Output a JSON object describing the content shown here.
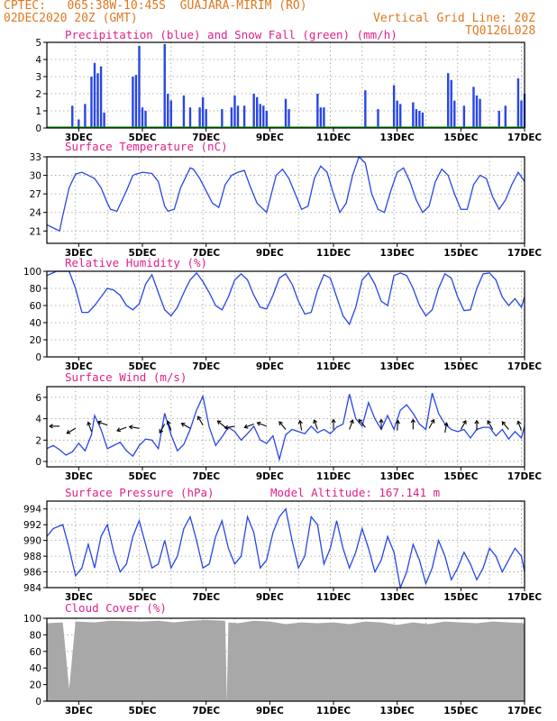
{
  "header": {
    "line1_left": "CPTEC:   065:38W-10:45S  GUAJARA-MIRIM (RO)",
    "line2_left": "02DEC2020 20Z (GMT)",
    "line2_right": "Vertical Grid Line: 20Z",
    "line3_right": "TQ0126L028"
  },
  "colors": {
    "header": "#e07820",
    "title": "#e0208a",
    "line": "#2846e6",
    "snow": "#10a010",
    "cloud": "#a8a8a8",
    "grid": "#9a9a9a"
  },
  "x_ticks": [
    "3DEC",
    "5DEC",
    "7DEC",
    "9DEC",
    "11DEC",
    "13DEC",
    "15DEC",
    "17DEC"
  ],
  "chart_data": [
    {
      "type": "bar",
      "title": "Precipitation (blue) and Snow Fall (green) (mm/h)",
      "ylim": [
        0,
        5
      ],
      "yticks": [
        0,
        1,
        2,
        3,
        4,
        5
      ],
      "x": [
        2.8,
        3.0,
        3.2,
        3.4,
        3.5,
        3.6,
        3.7,
        3.8,
        4.7,
        4.8,
        4.9,
        5.0,
        5.1,
        5.7,
        5.8,
        5.9,
        6.3,
        6.5,
        6.8,
        6.9,
        7.0,
        7.5,
        7.8,
        7.9,
        8.0,
        8.2,
        8.5,
        8.6,
        8.7,
        8.8,
        8.9,
        9.5,
        9.6,
        10.5,
        10.6,
        10.7,
        12.0,
        12.4,
        12.9,
        13.0,
        13.1,
        13.5,
        13.6,
        13.7,
        13.8,
        14.6,
        14.7,
        14.8,
        15.1,
        15.4,
        15.5,
        15.6,
        16.2,
        16.4,
        16.8,
        16.9,
        17.0
      ],
      "values": [
        1.3,
        0.5,
        1.4,
        3.0,
        3.8,
        3.2,
        3.6,
        0.9,
        3.0,
        3.1,
        4.8,
        1.2,
        1.0,
        4.9,
        2.0,
        1.6,
        1.9,
        1.2,
        1.2,
        1.8,
        1.1,
        1.1,
        1.2,
        1.9,
        1.3,
        1.3,
        2.0,
        1.8,
        1.4,
        1.3,
        1.0,
        1.7,
        1.1,
        2.0,
        1.2,
        1.2,
        2.2,
        1.1,
        2.5,
        1.6,
        1.4,
        1.5,
        1.1,
        1.0,
        0.9,
        3.2,
        2.8,
        1.6,
        1.3,
        2.4,
        1.9,
        1.7,
        1.0,
        1.3,
        2.9,
        1.6,
        2.0
      ]
    },
    {
      "type": "line",
      "title": "Surface Temperature (nC)",
      "ylim": [
        19,
        33
      ],
      "yticks": [
        21,
        24,
        27,
        30,
        33
      ],
      "x": [
        2.0,
        2.2,
        2.4,
        2.5,
        2.7,
        2.9,
        3.1,
        3.3,
        3.5,
        3.7,
        3.9,
        4.0,
        4.2,
        4.5,
        4.7,
        4.8,
        5.0,
        5.3,
        5.5,
        5.7,
        5.8,
        6.0,
        6.2,
        6.5,
        6.6,
        6.8,
        7.0,
        7.2,
        7.4,
        7.6,
        7.8,
        8.0,
        8.2,
        8.4,
        8.6,
        8.8,
        8.9,
        9.0,
        9.2,
        9.4,
        9.6,
        9.8,
        10.0,
        10.2,
        10.4,
        10.6,
        10.8,
        11.0,
        11.2,
        11.4,
        11.6,
        11.8,
        12.0,
        12.2,
        12.4,
        12.6,
        12.8,
        13.0,
        13.2,
        13.4,
        13.6,
        13.8,
        14.0,
        14.2,
        14.4,
        14.6,
        14.8,
        15.0,
        15.2,
        15.4,
        15.6,
        15.8,
        16.0,
        16.2,
        16.4,
        16.6,
        16.8,
        17.0
      ],
      "values": [
        22.0,
        21.5,
        21.0,
        23.5,
        28.0,
        30.2,
        30.5,
        30.0,
        29.5,
        28.0,
        25.5,
        24.5,
        24.2,
        27.5,
        30.0,
        30.2,
        30.5,
        30.3,
        29.0,
        25.0,
        24.2,
        24.5,
        28.0,
        31.2,
        31.0,
        29.5,
        27.5,
        25.5,
        24.8,
        28.5,
        30.0,
        30.5,
        30.8,
        28.0,
        25.5,
        24.5,
        24.0,
        26.0,
        30.0,
        31.0,
        29.5,
        27.0,
        24.5,
        25.0,
        29.5,
        31.5,
        30.5,
        27.0,
        24.0,
        25.5,
        30.0,
        33.0,
        32.0,
        27.0,
        24.5,
        24.0,
        27.5,
        30.5,
        31.2,
        29.0,
        26.0,
        24.0,
        25.0,
        29.0,
        31.0,
        30.0,
        27.0,
        24.5,
        24.5,
        28.5,
        30.0,
        29.5,
        26.5,
        24.5,
        26.0,
        28.5,
        30.5,
        29.0
      ]
    },
    {
      "type": "line",
      "title": "Relative Humidity (%)",
      "ylim": [
        0,
        100
      ],
      "yticks": [
        0,
        20,
        40,
        60,
        80,
        100
      ],
      "x": [
        2.0,
        2.3,
        2.5,
        2.7,
        2.9,
        3.1,
        3.3,
        3.5,
        3.7,
        3.9,
        4.1,
        4.3,
        4.5,
        4.7,
        4.9,
        5.1,
        5.3,
        5.5,
        5.7,
        5.9,
        6.1,
        6.3,
        6.5,
        6.7,
        6.9,
        7.1,
        7.3,
        7.5,
        7.7,
        7.9,
        8.1,
        8.3,
        8.5,
        8.7,
        8.9,
        9.1,
        9.3,
        9.5,
        9.7,
        9.9,
        10.1,
        10.3,
        10.5,
        10.7,
        10.9,
        11.1,
        11.3,
        11.5,
        11.7,
        11.9,
        12.1,
        12.3,
        12.5,
        12.7,
        12.9,
        13.1,
        13.3,
        13.5,
        13.7,
        13.9,
        14.1,
        14.3,
        14.5,
        14.7,
        14.9,
        15.1,
        15.3,
        15.5,
        15.7,
        15.9,
        16.1,
        16.3,
        16.5,
        16.7,
        16.9,
        17.0
      ],
      "values": [
        95,
        100,
        100,
        100,
        80,
        52,
        52,
        60,
        70,
        80,
        78,
        72,
        60,
        55,
        62,
        85,
        96,
        75,
        55,
        48,
        58,
        75,
        90,
        98,
        88,
        75,
        60,
        55,
        70,
        90,
        97,
        90,
        72,
        58,
        56,
        72,
        92,
        97,
        85,
        65,
        50,
        52,
        78,
        96,
        92,
        70,
        48,
        38,
        58,
        90,
        98,
        85,
        65,
        60,
        95,
        98,
        95,
        80,
        60,
        48,
        55,
        80,
        97,
        92,
        70,
        54,
        55,
        80,
        97,
        98,
        90,
        70,
        60,
        68,
        58,
        70
      ]
    },
    {
      "type": "line",
      "title": "Surface Wind (m/s)",
      "ylim": [
        -0.5,
        7
      ],
      "yticks": [
        0,
        2,
        4,
        6
      ],
      "x": [
        2.0,
        2.2,
        2.4,
        2.6,
        2.8,
        3.0,
        3.2,
        3.4,
        3.5,
        3.7,
        3.9,
        4.1,
        4.3,
        4.5,
        4.7,
        4.9,
        5.1,
        5.3,
        5.5,
        5.7,
        5.9,
        6.1,
        6.3,
        6.5,
        6.7,
        6.9,
        7.1,
        7.3,
        7.5,
        7.7,
        7.9,
        8.1,
        8.3,
        8.5,
        8.7,
        8.9,
        9.1,
        9.3,
        9.5,
        9.7,
        9.9,
        10.1,
        10.3,
        10.5,
        10.7,
        10.9,
        11.1,
        11.3,
        11.5,
        11.7,
        11.9,
        12.1,
        12.3,
        12.5,
        12.7,
        12.9,
        13.1,
        13.3,
        13.5,
        13.7,
        13.9,
        14.1,
        14.3,
        14.5,
        14.7,
        14.9,
        15.1,
        15.3,
        15.5,
        15.7,
        15.9,
        16.1,
        16.3,
        16.5,
        16.7,
        16.9,
        17.0
      ],
      "values": [
        1.2,
        1.5,
        1.1,
        0.6,
        0.9,
        1.7,
        1.0,
        2.5,
        4.3,
        3.0,
        1.2,
        1.5,
        1.8,
        1.0,
        0.5,
        1.5,
        2.1,
        2.0,
        1.2,
        4.5,
        2.5,
        1.0,
        1.6,
        3.0,
        4.8,
        6.1,
        3.2,
        1.5,
        2.3,
        3.2,
        2.8,
        2.0,
        2.6,
        3.3,
        2.0,
        1.7,
        2.4,
        0.2,
        2.5,
        3.0,
        2.8,
        2.6,
        3.3,
        2.7,
        3.0,
        2.6,
        3.2,
        3.5,
        6.3,
        4.0,
        3.3,
        5.5,
        4.0,
        3.0,
        4.3,
        3.0,
        4.8,
        5.3,
        4.5,
        3.5,
        3.0,
        6.4,
        4.5,
        3.5,
        3.0,
        2.8,
        3.0,
        2.2,
        3.0,
        3.2,
        3.2,
        2.4,
        3.0,
        2.1,
        2.8,
        2.2,
        3.3
      ],
      "vectors": [
        {
          "x": 2.4,
          "y": 3.3,
          "deg": 180
        },
        {
          "x": 2.9,
          "y": 3.1,
          "deg": 150
        },
        {
          "x": 3.4,
          "y": 2.8,
          "deg": 250
        },
        {
          "x": 3.9,
          "y": 3.4,
          "deg": 200
        },
        {
          "x": 4.5,
          "y": 3.2,
          "deg": 160
        },
        {
          "x": 4.9,
          "y": 3.1,
          "deg": 190
        },
        {
          "x": 5.7,
          "y": 3.5,
          "deg": 120
        },
        {
          "x": 5.9,
          "y": 2.9,
          "deg": 250
        },
        {
          "x": 6.5,
          "y": 3.1,
          "deg": 210
        },
        {
          "x": 6.9,
          "y": 3.4,
          "deg": 240
        },
        {
          "x": 7.6,
          "y": 3.2,
          "deg": 220
        },
        {
          "x": 7.9,
          "y": 3.3,
          "deg": 170
        },
        {
          "x": 8.5,
          "y": 3.5,
          "deg": 160
        },
        {
          "x": 8.9,
          "y": 3.3,
          "deg": 200
        },
        {
          "x": 9.5,
          "y": 3.0,
          "deg": 230
        },
        {
          "x": 10.0,
          "y": 2.9,
          "deg": 260
        },
        {
          "x": 10.5,
          "y": 3.0,
          "deg": 250
        },
        {
          "x": 11.0,
          "y": 3.0,
          "deg": 270
        },
        {
          "x": 11.5,
          "y": 3.0,
          "deg": 290
        },
        {
          "x": 12.0,
          "y": 3.2,
          "deg": 230
        },
        {
          "x": 12.5,
          "y": 3.0,
          "deg": 270
        },
        {
          "x": 13.0,
          "y": 2.9,
          "deg": 275
        },
        {
          "x": 13.5,
          "y": 3.0,
          "deg": 270
        },
        {
          "x": 14.0,
          "y": 3.1,
          "deg": 300
        },
        {
          "x": 14.5,
          "y": 2.7,
          "deg": 280
        },
        {
          "x": 15.0,
          "y": 3.0,
          "deg": 300
        },
        {
          "x": 15.5,
          "y": 2.9,
          "deg": 270
        },
        {
          "x": 16.0,
          "y": 3.0,
          "deg": 240
        },
        {
          "x": 16.5,
          "y": 3.0,
          "deg": 230
        },
        {
          "x": 16.9,
          "y": 2.9,
          "deg": 250
        }
      ]
    },
    {
      "type": "line",
      "title": "Surface Pressure (hPa)",
      "annotation": "Model Altitude: 167.141 m",
      "ylim": [
        984,
        995
      ],
      "yticks": [
        984,
        986,
        988,
        990,
        992,
        994
      ],
      "x": [
        2.0,
        2.2,
        2.5,
        2.7,
        2.9,
        3.1,
        3.3,
        3.5,
        3.7,
        3.9,
        4.1,
        4.3,
        4.5,
        4.7,
        4.9,
        5.1,
        5.3,
        5.5,
        5.7,
        5.9,
        6.1,
        6.3,
        6.5,
        6.7,
        6.9,
        7.1,
        7.3,
        7.5,
        7.7,
        7.9,
        8.1,
        8.3,
        8.5,
        8.7,
        8.9,
        9.1,
        9.3,
        9.5,
        9.7,
        9.9,
        10.1,
        10.3,
        10.5,
        10.7,
        10.9,
        11.1,
        11.3,
        11.5,
        11.7,
        11.9,
        12.1,
        12.3,
        12.5,
        12.7,
        12.9,
        13.1,
        13.3,
        13.5,
        13.7,
        13.9,
        14.1,
        14.3,
        14.5,
        14.7,
        14.9,
        15.1,
        15.3,
        15.5,
        15.7,
        15.9,
        16.1,
        16.3,
        16.5,
        16.7,
        16.9,
        17.0
      ],
      "values": [
        990.5,
        991.5,
        992.0,
        989.0,
        985.5,
        986.5,
        989.5,
        986.5,
        990.5,
        992.0,
        988.5,
        986.0,
        987.0,
        990.5,
        992.5,
        989.5,
        986.5,
        987.0,
        990.0,
        986.5,
        988.0,
        991.5,
        993.0,
        990.0,
        986.5,
        987.0,
        990.5,
        992.5,
        989.0,
        987.0,
        988.0,
        993.0,
        991.0,
        986.5,
        987.5,
        991.0,
        993.0,
        994.0,
        990.0,
        986.5,
        988.0,
        993.0,
        992.0,
        987.0,
        989.0,
        992.5,
        989.0,
        986.5,
        988.5,
        991.5,
        989.0,
        986.0,
        987.5,
        990.5,
        988.5,
        984.0,
        986.0,
        989.5,
        987.5,
        984.5,
        986.5,
        990.0,
        988.0,
        985.0,
        986.5,
        988.5,
        987.0,
        985.0,
        986.5,
        989.0,
        988.0,
        986.0,
        987.5,
        989.0,
        988.0,
        986.0
      ]
    },
    {
      "type": "area",
      "title": "Cloud Cover (%)",
      "ylim": [
        0,
        100
      ],
      "yticks": [
        0,
        20,
        40,
        60,
        80,
        100
      ],
      "x": [
        2.0,
        2.5,
        2.7,
        2.9,
        3.5,
        4.0,
        5.0,
        5.5,
        6.0,
        6.5,
        7.0,
        7.6,
        7.65,
        7.7,
        8.0,
        8.5,
        9.0,
        9.5,
        10.0,
        10.5,
        11.0,
        11.5,
        12.0,
        12.5,
        13.0,
        13.5,
        14.0,
        14.5,
        15.0,
        15.5,
        16.0,
        16.5,
        17.0
      ],
      "values": [
        94,
        95,
        15,
        96,
        95,
        97,
        96,
        97,
        95,
        97,
        98,
        97,
        0,
        95,
        94,
        97,
        96,
        93,
        95,
        94,
        95,
        93,
        96,
        95,
        92,
        95,
        93,
        96,
        95,
        94,
        96,
        95,
        94
      ]
    }
  ]
}
